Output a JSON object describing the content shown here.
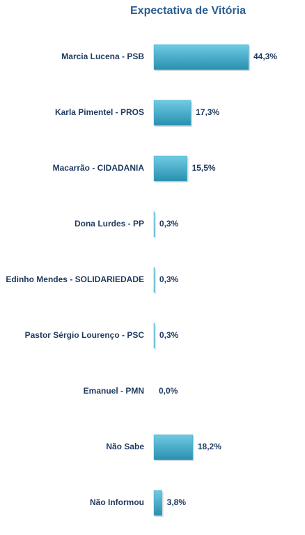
{
  "chart_data": {
    "type": "bar",
    "orientation": "horizontal",
    "title": "Expectativa de Vitória",
    "categories": [
      "Marcia Lucena - PSB",
      "Karla Pimentel - PROS",
      "Macarrão - CIDADANIA",
      "Dona Lurdes - PP",
      "Edinho Mendes - SOLIDARIEDADE",
      "Pastor Sérgio Lourenço - PSC",
      "Emanuel - PMN",
      "Não Sabe",
      "Não Informou"
    ],
    "values": [
      44.3,
      17.3,
      15.5,
      0.3,
      0.3,
      0.3,
      0.0,
      18.2,
      3.8
    ],
    "value_labels": [
      "44,3%",
      "17,3%",
      "15,5%",
      "0,3%",
      "0,3%",
      "0,3%",
      "0,0%",
      "18,2%",
      "3,8%"
    ],
    "color": "#3aa9cb"
  }
}
